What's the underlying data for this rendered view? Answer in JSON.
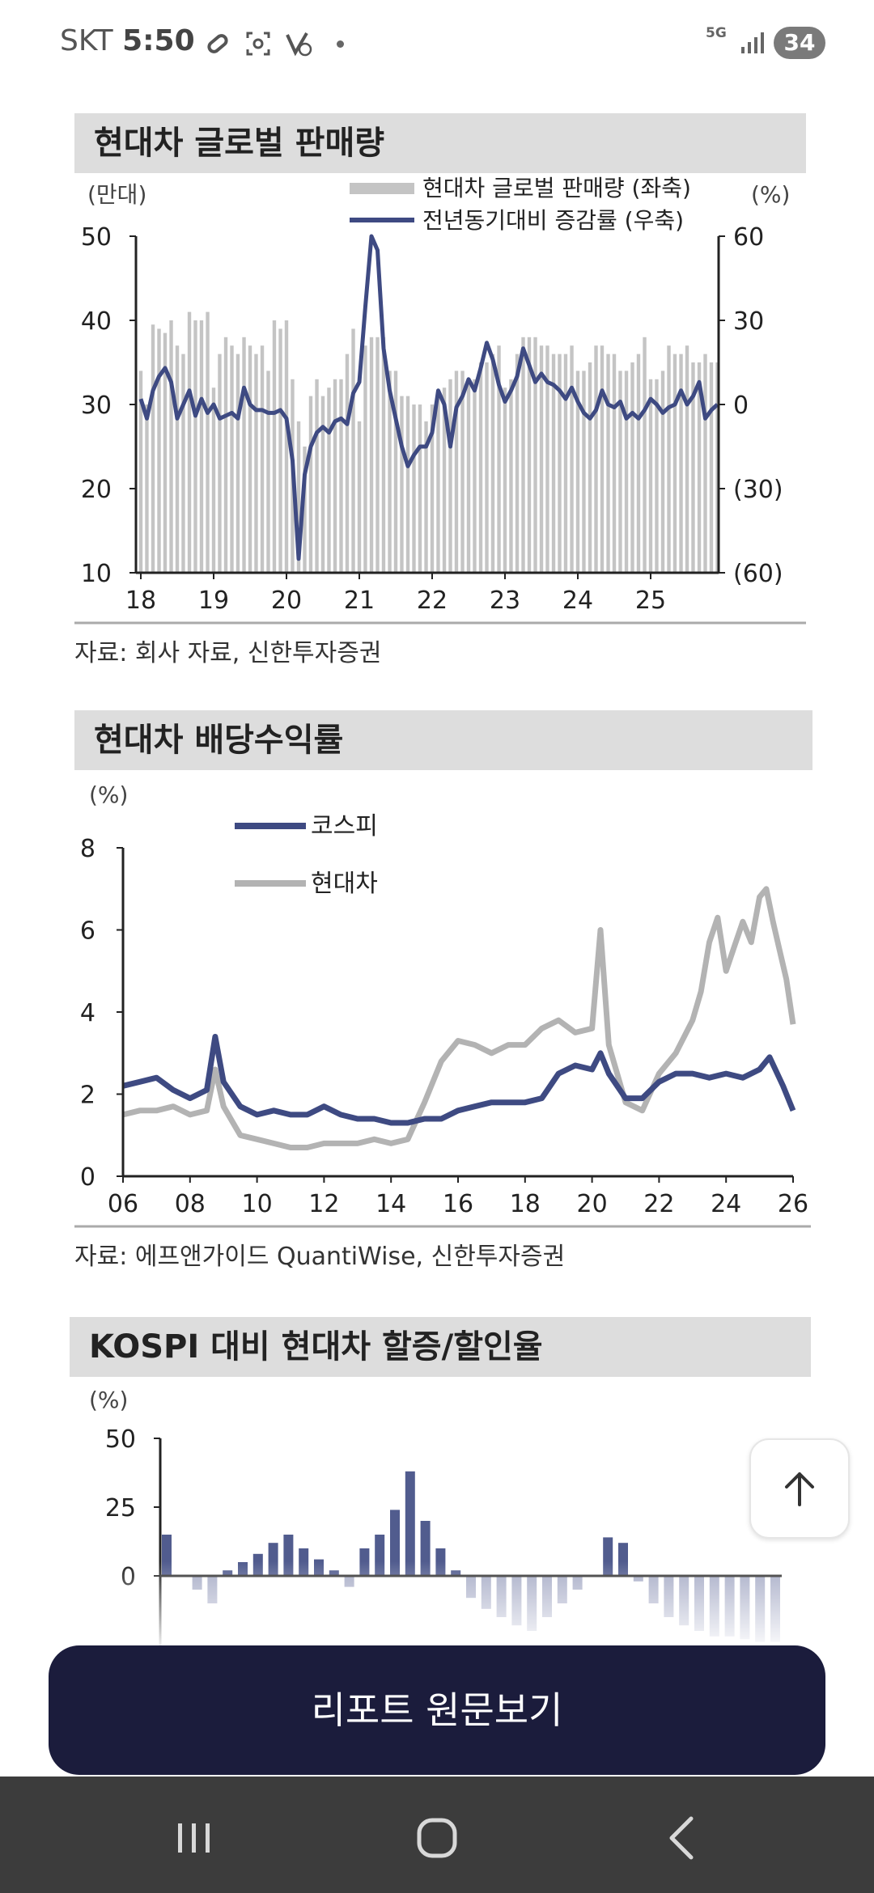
{
  "status_bar": {
    "carrier": "SKT",
    "time": "5:50",
    "network": "5G",
    "battery": "34",
    "icons": [
      "link-icon",
      "screenshot-icon",
      "blocked-icon",
      "notification-dot-icon"
    ]
  },
  "charts": [
    {
      "title": "현대차 글로벌 판매량",
      "source": "자료: 회사 자료, 신한투자증권"
    },
    {
      "title": "현대차 배당수익률",
      "source": "자료: 에프앤가이드 QuantiWise, 신한투자증권"
    },
    {
      "title": "KOSPI 대비 현대차 할증/할인율"
    }
  ],
  "chart_data": [
    {
      "type": "bar",
      "title": "현대차 글로벌 판매량",
      "left_unit": "(만대)",
      "right_unit": "(%)",
      "x_ticks": [
        "18",
        "19",
        "20",
        "21",
        "22",
        "23",
        "24",
        "25"
      ],
      "y_left_ticks": [
        "50",
        "40",
        "30",
        "20",
        "10"
      ],
      "y_right_ticks": [
        "60",
        "30",
        "0",
        "(30)",
        "(60)"
      ],
      "ylim_left": [
        10,
        50
      ],
      "ylim_right": [
        -60,
        60
      ],
      "colors": {
        "bars": "#c4c4c4",
        "line": "#3e4a82"
      },
      "series": [
        {
          "name": "현대차 글로벌 판매량 (좌축)",
          "type": "bar",
          "x": [
            2018.0,
            2018.083,
            2018.167,
            2018.25,
            2018.333,
            2018.417,
            2018.5,
            2018.583,
            2018.667,
            2018.75,
            2018.833,
            2018.917,
            2019.0,
            2019.083,
            2019.167,
            2019.25,
            2019.333,
            2019.417,
            2019.5,
            2019.583,
            2019.667,
            2019.75,
            2019.833,
            2019.917,
            2020.0,
            2020.083,
            2020.167,
            2020.25,
            2020.333,
            2020.417,
            2020.5,
            2020.583,
            2020.667,
            2020.75,
            2020.833,
            2020.917,
            2021.0,
            2021.083,
            2021.167,
            2021.25,
            2021.333,
            2021.417,
            2021.5,
            2021.583,
            2021.667,
            2021.75,
            2021.833,
            2021.917,
            2022.0,
            2022.083,
            2022.167,
            2022.25,
            2022.333,
            2022.417,
            2022.5,
            2022.583,
            2022.667,
            2022.75,
            2022.833,
            2022.917,
            2023.0,
            2023.083,
            2023.167,
            2023.25,
            2023.333,
            2023.417,
            2023.5,
            2023.583,
            2023.667,
            2023.75,
            2023.833,
            2023.917,
            2024.0,
            2024.083,
            2024.167,
            2024.25,
            2024.333,
            2024.417,
            2024.5,
            2024.583,
            2024.667,
            2024.75,
            2024.833,
            2024.917,
            2025.0,
            2025.083,
            2025.167,
            2025.25,
            2025.333,
            2025.417,
            2025.5,
            2025.583,
            2025.667,
            2025.75,
            2025.833,
            2025.917
          ],
          "values": [
            34,
            30,
            39.5,
            39,
            38.5,
            40,
            37,
            36,
            41,
            40,
            40,
            41,
            32,
            36,
            38,
            37,
            36,
            38,
            37,
            36,
            37,
            34,
            40,
            39,
            40,
            33,
            28,
            25,
            31,
            33,
            31,
            32,
            33,
            33,
            36,
            39,
            28,
            37,
            38,
            38,
            38,
            34,
            34,
            31,
            31,
            30,
            30,
            28,
            30,
            31,
            32,
            33,
            34,
            34,
            33,
            33,
            35,
            35,
            36,
            37,
            32,
            33,
            36,
            38,
            38,
            38,
            37,
            37,
            36,
            36,
            36,
            37,
            34,
            34,
            35,
            37,
            37,
            36,
            36,
            34,
            34,
            35,
            36,
            38,
            33,
            33,
            34,
            37,
            36,
            36,
            37,
            35,
            35,
            36,
            35,
            35
          ]
        },
        {
          "name": "전년동기대비 증감률 (우축)",
          "type": "line",
          "x": [
            2018.0,
            2018.083,
            2018.167,
            2018.25,
            2018.333,
            2018.417,
            2018.5,
            2018.583,
            2018.667,
            2018.75,
            2018.833,
            2018.917,
            2019.0,
            2019.083,
            2019.167,
            2019.25,
            2019.333,
            2019.417,
            2019.5,
            2019.583,
            2019.667,
            2019.75,
            2019.833,
            2019.917,
            2020.0,
            2020.083,
            2020.167,
            2020.25,
            2020.333,
            2020.417,
            2020.5,
            2020.583,
            2020.667,
            2020.75,
            2020.833,
            2020.917,
            2021.0,
            2021.083,
            2021.167,
            2021.25,
            2021.333,
            2021.417,
            2021.5,
            2021.583,
            2021.667,
            2021.75,
            2021.833,
            2021.917,
            2022.0,
            2022.083,
            2022.167,
            2022.25,
            2022.333,
            2022.417,
            2022.5,
            2022.583,
            2022.667,
            2022.75,
            2022.833,
            2022.917,
            2023.0,
            2023.083,
            2023.167,
            2023.25,
            2023.333,
            2023.417,
            2023.5,
            2023.583,
            2023.667,
            2023.75,
            2023.833,
            2023.917,
            2024.0,
            2024.083,
            2024.167,
            2024.25,
            2024.333,
            2024.417,
            2024.5,
            2024.583,
            2024.667,
            2024.75,
            2024.833,
            2024.917,
            2025.0,
            2025.083,
            2025.167,
            2025.25,
            2025.333,
            2025.417,
            2025.5,
            2025.583,
            2025.667,
            2025.75,
            2025.833,
            2025.917
          ],
          "values": [
            2,
            -5,
            5,
            10,
            13,
            8,
            -5,
            0,
            5,
            -4,
            2,
            -3,
            0,
            -5,
            -4,
            -3,
            -5,
            6,
            0,
            -2,
            -2,
            -3,
            -3,
            -2,
            -5,
            -20,
            -55,
            -25,
            -15,
            -10,
            -8,
            -10,
            -6,
            -5,
            -7,
            4,
            8,
            35,
            62,
            55,
            20,
            5,
            -5,
            -15,
            -22,
            -18,
            -15,
            -15,
            -10,
            5,
            0,
            -15,
            -1,
            3,
            9,
            5,
            13,
            22,
            16,
            7,
            1,
            5,
            10,
            20,
            14,
            8,
            11,
            8,
            7,
            5,
            2,
            6,
            1,
            -3,
            -5,
            -2,
            5,
            0,
            -1,
            1,
            -5,
            -3,
            -5,
            -2,
            2,
            0,
            -3,
            -1,
            0,
            5,
            0,
            3,
            8,
            -5,
            -2,
            0
          ]
        }
      ]
    },
    {
      "type": "line",
      "title": "현대차 배당수익률",
      "unit": "(%)",
      "x_ticks": [
        "06",
        "08",
        "10",
        "12",
        "14",
        "16",
        "18",
        "20",
        "22",
        "24",
        "26"
      ],
      "y_ticks": [
        "8",
        "6",
        "4",
        "2",
        "0"
      ],
      "ylim": [
        0,
        8
      ],
      "xlim": [
        2006,
        2026
      ],
      "series": [
        {
          "name": "코스피",
          "color": "#3e4a82",
          "x": [
            2006,
            2006.5,
            2007,
            2007.5,
            2008,
            2008.5,
            2008.75,
            2009,
            2009.5,
            2010,
            2010.5,
            2011,
            2011.5,
            2012,
            2012.5,
            2013,
            2013.5,
            2014,
            2014.5,
            2015,
            2015.5,
            2016,
            2016.5,
            2017,
            2017.5,
            2018,
            2018.5,
            2019,
            2019.5,
            2020,
            2020.25,
            2020.5,
            2021,
            2021.5,
            2022,
            2022.5,
            2023,
            2023.5,
            2024,
            2024.5,
            2025,
            2025.3,
            2025.7,
            2026
          ],
          "values": [
            2.2,
            2.3,
            2.4,
            2.1,
            1.9,
            2.1,
            3.4,
            2.3,
            1.7,
            1.5,
            1.6,
            1.5,
            1.5,
            1.7,
            1.5,
            1.4,
            1.4,
            1.3,
            1.3,
            1.4,
            1.4,
            1.6,
            1.7,
            1.8,
            1.8,
            1.8,
            1.9,
            2.5,
            2.7,
            2.6,
            3.0,
            2.5,
            1.9,
            1.9,
            2.3,
            2.5,
            2.5,
            2.4,
            2.5,
            2.4,
            2.6,
            2.9,
            2.2,
            1.6
          ]
        },
        {
          "name": "현대차",
          "color": "#b3b3b3",
          "x": [
            2006,
            2006.5,
            2007,
            2007.5,
            2008,
            2008.5,
            2008.75,
            2009,
            2009.5,
            2010,
            2010.5,
            2011,
            2011.5,
            2012,
            2012.5,
            2013,
            2013.5,
            2014,
            2014.5,
            2015,
            2015.5,
            2016,
            2016.5,
            2017,
            2017.5,
            2018,
            2018.5,
            2019,
            2019.5,
            2020,
            2020.25,
            2020.5,
            2021,
            2021.5,
            2022,
            2022.5,
            2023,
            2023.25,
            2023.5,
            2023.75,
            2024,
            2024.25,
            2024.5,
            2024.75,
            2025,
            2025.2,
            2025.4,
            2025.6,
            2025.8,
            2026
          ],
          "values": [
            1.5,
            1.6,
            1.6,
            1.7,
            1.5,
            1.6,
            2.6,
            1.7,
            1.0,
            0.9,
            0.8,
            0.7,
            0.7,
            0.8,
            0.8,
            0.8,
            0.9,
            0.8,
            0.9,
            1.8,
            2.8,
            3.3,
            3.2,
            3.0,
            3.2,
            3.2,
            3.6,
            3.8,
            3.5,
            3.6,
            6.0,
            3.2,
            1.8,
            1.6,
            2.5,
            3.0,
            3.8,
            4.5,
            5.7,
            6.3,
            5.0,
            5.6,
            6.2,
            5.7,
            6.8,
            7.0,
            6.2,
            5.5,
            4.8,
            3.7
          ]
        }
      ]
    },
    {
      "type": "area",
      "title": "KOSPI 대비 현대차 할증/할인율",
      "unit": "(%)",
      "y_ticks": [
        "50",
        "25",
        "0"
      ],
      "ylim": [
        -25,
        50
      ],
      "color": "#3e4a82",
      "x": [
        0,
        1,
        2,
        3,
        4,
        5,
        6,
        7,
        8,
        9,
        10,
        11,
        12,
        13,
        14,
        15,
        16,
        17,
        18,
        19,
        20,
        21,
        22,
        23,
        24,
        25,
        26,
        27,
        28,
        29,
        30,
        31,
        32,
        33,
        34,
        35,
        36,
        37,
        38,
        39,
        40
      ],
      "values": [
        15,
        0,
        -5,
        -10,
        2,
        5,
        8,
        12,
        15,
        10,
        6,
        2,
        -4,
        10,
        15,
        24,
        38,
        20,
        10,
        2,
        -8,
        -12,
        -15,
        -18,
        -20,
        -15,
        -10,
        -5,
        0,
        14,
        12,
        -2,
        -10,
        -15,
        -18,
        -20,
        -22,
        -22,
        -23,
        -24,
        -24
      ]
    }
  ],
  "scroll_top_button": {
    "icon": "arrow-up-icon"
  },
  "report_button": {
    "label": "리포트 원문보기"
  },
  "nav_bar": {
    "icons": [
      "recents-icon",
      "home-icon",
      "back-icon"
    ]
  }
}
